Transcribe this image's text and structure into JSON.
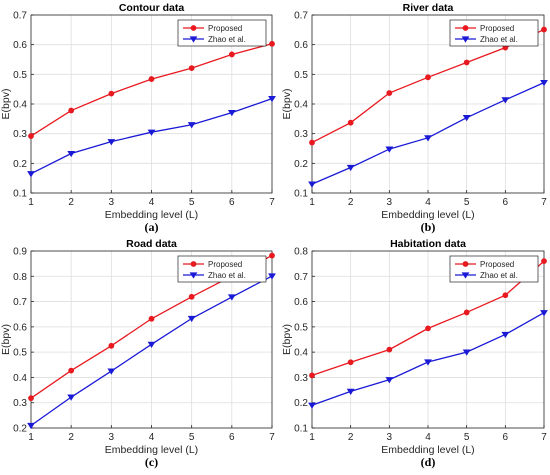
{
  "chart_data": [
    {
      "type": "line",
      "title": "Contour data",
      "xlabel": "Embedding level (L)",
      "ylabel": "E(bpv)",
      "panel_label": "(a)",
      "x": [
        1,
        2,
        3,
        4,
        5,
        6,
        7
      ],
      "xlim": [
        1,
        7
      ],
      "ylim": [
        0.1,
        0.7
      ],
      "xticks": [
        "1",
        "2",
        "3",
        "4",
        "5",
        "6",
        "7"
      ],
      "yticks": [
        "0.1",
        "0.2",
        "0.3",
        "0.4",
        "0.5",
        "0.6",
        "0.7"
      ],
      "grid": true,
      "legend": "top-right",
      "series": [
        {
          "name": "Proposed",
          "color": "#e8191f",
          "marker": "circle",
          "values": [
            0.292,
            0.378,
            0.435,
            0.484,
            0.521,
            0.567,
            0.603
          ]
        },
        {
          "name": "Zhao et al.",
          "color": "#1a1ad6",
          "marker": "triangle-down",
          "values": [
            0.165,
            0.233,
            0.273,
            0.305,
            0.33,
            0.371,
            0.418
          ]
        }
      ]
    },
    {
      "type": "line",
      "title": "River data",
      "xlabel": "Embedding level (L)",
      "ylabel": "E(bpv)",
      "panel_label": "(b)",
      "x": [
        1,
        2,
        3,
        4,
        5,
        6,
        7
      ],
      "xlim": [
        1,
        7
      ],
      "ylim": [
        0.1,
        0.7
      ],
      "xticks": [
        "1",
        "2",
        "3",
        "4",
        "5",
        "6",
        "7"
      ],
      "yticks": [
        "0.1",
        "0.2",
        "0.3",
        "0.4",
        "0.5",
        "0.6",
        "0.7"
      ],
      "grid": true,
      "legend": "top-right",
      "series": [
        {
          "name": "Proposed",
          "color": "#e8191f",
          "marker": "circle",
          "values": [
            0.27,
            0.337,
            0.437,
            0.49,
            0.54,
            0.59,
            0.651
          ]
        },
        {
          "name": "Zhao et al.",
          "color": "#1a1ad6",
          "marker": "triangle-down",
          "values": [
            0.13,
            0.186,
            0.248,
            0.286,
            0.354,
            0.414,
            0.472
          ]
        }
      ]
    },
    {
      "type": "line",
      "title": "Road data",
      "xlabel": "Embedding level (L)",
      "ylabel": "E(bpv)",
      "panel_label": "(c)",
      "x": [
        1,
        2,
        3,
        4,
        5,
        6,
        7
      ],
      "xlim": [
        1,
        7
      ],
      "ylim": [
        0.2,
        0.9
      ],
      "xticks": [
        "1",
        "2",
        "3",
        "4",
        "5",
        "6",
        "7"
      ],
      "yticks": [
        "0.2",
        "0.3",
        "0.4",
        "0.5",
        "0.6",
        "0.7",
        "0.8",
        "0.9"
      ],
      "grid": true,
      "legend": "top-right",
      "series": [
        {
          "name": "Proposed",
          "color": "#e8191f",
          "marker": "circle",
          "values": [
            0.318,
            0.427,
            0.525,
            0.632,
            0.719,
            0.801,
            0.882
          ]
        },
        {
          "name": "Zhao et al.",
          "color": "#1a1ad6",
          "marker": "triangle-down",
          "values": [
            0.21,
            0.322,
            0.425,
            0.531,
            0.633,
            0.718,
            0.801
          ]
        }
      ]
    },
    {
      "type": "line",
      "title": "Habitation data",
      "xlabel": "Embedding level (L)",
      "ylabel": "E(bpv)",
      "panel_label": "(d)",
      "x": [
        1,
        2,
        3,
        4,
        5,
        6,
        7
      ],
      "xlim": [
        1,
        7
      ],
      "ylim": [
        0.1,
        0.8
      ],
      "xticks": [
        "1",
        "2",
        "3",
        "4",
        "5",
        "6",
        "7"
      ],
      "yticks": [
        "0.1",
        "0.2",
        "0.3",
        "0.4",
        "0.5",
        "0.6",
        "0.7",
        "0.8"
      ],
      "grid": true,
      "legend": "top-right",
      "series": [
        {
          "name": "Proposed",
          "color": "#e8191f",
          "marker": "circle",
          "values": [
            0.308,
            0.36,
            0.41,
            0.494,
            0.557,
            0.625,
            0.76
          ]
        },
        {
          "name": "Zhao et al.",
          "color": "#1a1ad6",
          "marker": "triangle-down",
          "values": [
            0.19,
            0.245,
            0.291,
            0.361,
            0.4,
            0.47,
            0.556
          ]
        }
      ]
    }
  ]
}
